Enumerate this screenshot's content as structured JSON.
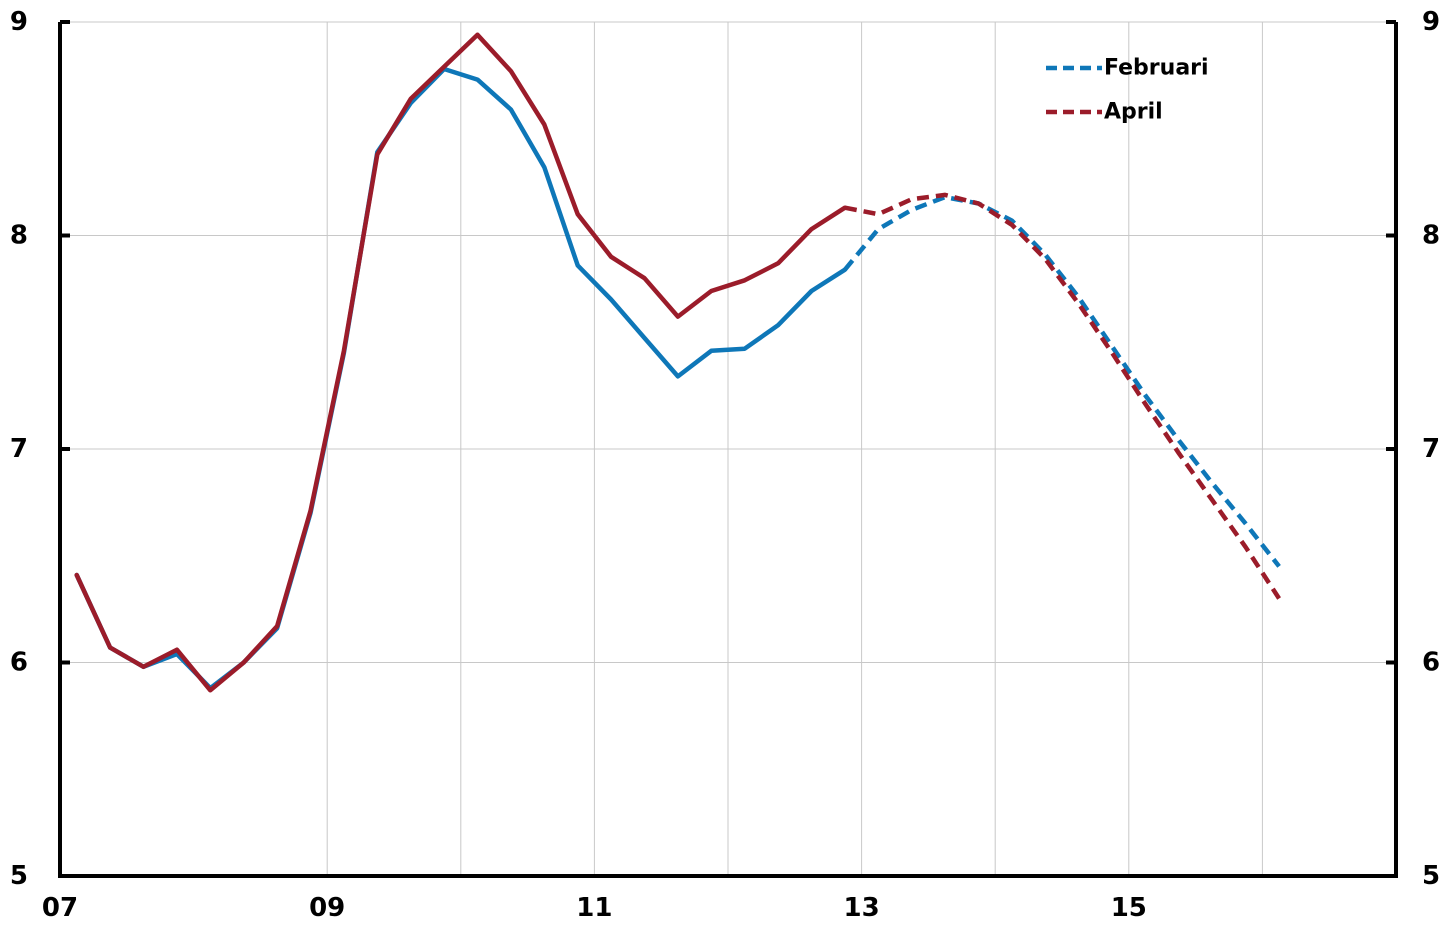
{
  "chart_data": {
    "type": "line",
    "title": "",
    "xlabel": "",
    "ylabel": "",
    "xlim": [
      2007.0,
      2017.0
    ],
    "ylim": [
      5,
      9
    ],
    "y_ticks": [
      "5",
      "6",
      "7",
      "8",
      "9"
    ],
    "x_tick_labels": [
      {
        "label": "07",
        "x": 2007
      },
      {
        "label": "09",
        "x": 2009
      },
      {
        "label": "11",
        "x": 2011
      },
      {
        "label": "13",
        "x": 2013
      },
      {
        "label": "15",
        "x": 2015
      }
    ],
    "x_gridlines": [
      2009,
      2010,
      2011,
      2012,
      2013,
      2014,
      2015,
      2016
    ],
    "grid": true,
    "right_axis_mirror": true,
    "legend_position": "top-right",
    "legend_style": "dashed",
    "series": [
      {
        "name": "Februari",
        "color": "#0E77B8",
        "actual": [
          [
            2007.125,
            6.41
          ],
          [
            2007.375,
            6.07
          ],
          [
            2007.625,
            5.98
          ],
          [
            2007.875,
            6.04
          ],
          [
            2008.125,
            5.88
          ],
          [
            2008.375,
            6.0
          ],
          [
            2008.625,
            6.16
          ],
          [
            2008.875,
            6.7
          ],
          [
            2009.125,
            7.45
          ],
          [
            2009.375,
            8.39
          ],
          [
            2009.625,
            8.62
          ],
          [
            2009.875,
            8.78
          ],
          [
            2010.125,
            8.73
          ],
          [
            2010.375,
            8.59
          ],
          [
            2010.625,
            8.32
          ],
          [
            2010.875,
            7.86
          ],
          [
            2011.125,
            7.7
          ],
          [
            2011.375,
            7.52
          ],
          [
            2011.625,
            7.34
          ],
          [
            2011.875,
            7.46
          ],
          [
            2012.125,
            7.47
          ],
          [
            2012.375,
            7.58
          ],
          [
            2012.625,
            7.74
          ],
          [
            2012.875,
            7.84
          ]
        ],
        "forecast": [
          [
            2012.875,
            7.84
          ],
          [
            2013.125,
            8.03
          ],
          [
            2013.375,
            8.12
          ],
          [
            2013.625,
            8.18
          ],
          [
            2013.875,
            8.15
          ],
          [
            2014.125,
            8.07
          ],
          [
            2014.375,
            7.91
          ],
          [
            2014.625,
            7.71
          ],
          [
            2014.875,
            7.48
          ],
          [
            2015.125,
            7.25
          ],
          [
            2015.375,
            7.04
          ],
          [
            2015.625,
            6.84
          ],
          [
            2015.875,
            6.65
          ],
          [
            2016.125,
            6.45
          ]
        ]
      },
      {
        "name": "April",
        "color": "#9B1C2A",
        "actual": [
          [
            2007.125,
            6.41
          ],
          [
            2007.375,
            6.07
          ],
          [
            2007.625,
            5.98
          ],
          [
            2007.875,
            6.06
          ],
          [
            2008.125,
            5.87
          ],
          [
            2008.375,
            6.0
          ],
          [
            2008.625,
            6.17
          ],
          [
            2008.875,
            6.71
          ],
          [
            2009.125,
            7.46
          ],
          [
            2009.375,
            8.38
          ],
          [
            2009.625,
            8.64
          ],
          [
            2009.875,
            8.79
          ],
          [
            2010.125,
            8.94
          ],
          [
            2010.375,
            8.77
          ],
          [
            2010.625,
            8.52
          ],
          [
            2010.875,
            8.1
          ],
          [
            2011.125,
            7.9
          ],
          [
            2011.375,
            7.8
          ],
          [
            2011.625,
            7.62
          ],
          [
            2011.875,
            7.74
          ],
          [
            2012.125,
            7.79
          ],
          [
            2012.375,
            7.87
          ],
          [
            2012.625,
            8.03
          ],
          [
            2012.875,
            8.13
          ]
        ],
        "forecast": [
          [
            2012.875,
            8.13
          ],
          [
            2013.125,
            8.1
          ],
          [
            2013.375,
            8.17
          ],
          [
            2013.625,
            8.19
          ],
          [
            2013.875,
            8.15
          ],
          [
            2014.125,
            8.05
          ],
          [
            2014.375,
            7.89
          ],
          [
            2014.625,
            7.68
          ],
          [
            2014.875,
            7.45
          ],
          [
            2015.125,
            7.21
          ],
          [
            2015.375,
            6.98
          ],
          [
            2015.625,
            6.76
          ],
          [
            2015.875,
            6.54
          ],
          [
            2016.125,
            6.3
          ]
        ]
      }
    ]
  }
}
